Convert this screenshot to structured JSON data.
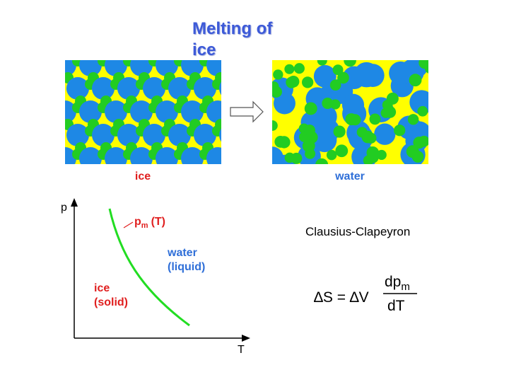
{
  "title": "Melting of ice",
  "panels": [
    {
      "label": "ice"
    },
    {
      "label": "water"
    }
  ],
  "diagram": {
    "y_axis_label": "p",
    "x_axis_label": "T",
    "curve_label": {
      "main": "p",
      "subscript": "m",
      "suffix": "(T)"
    },
    "regions": [
      {
        "label": [
          "water",
          "(liquid)"
        ]
      },
      {
        "label": [
          "ice",
          "(solid)"
        ]
      }
    ]
  },
  "equation": {
    "heading": "Clausius-Clapeyron",
    "lhs": "∆S = ∆V",
    "numerator": {
      "main": "dp",
      "subscript": "m"
    },
    "denominator": "dT"
  }
}
